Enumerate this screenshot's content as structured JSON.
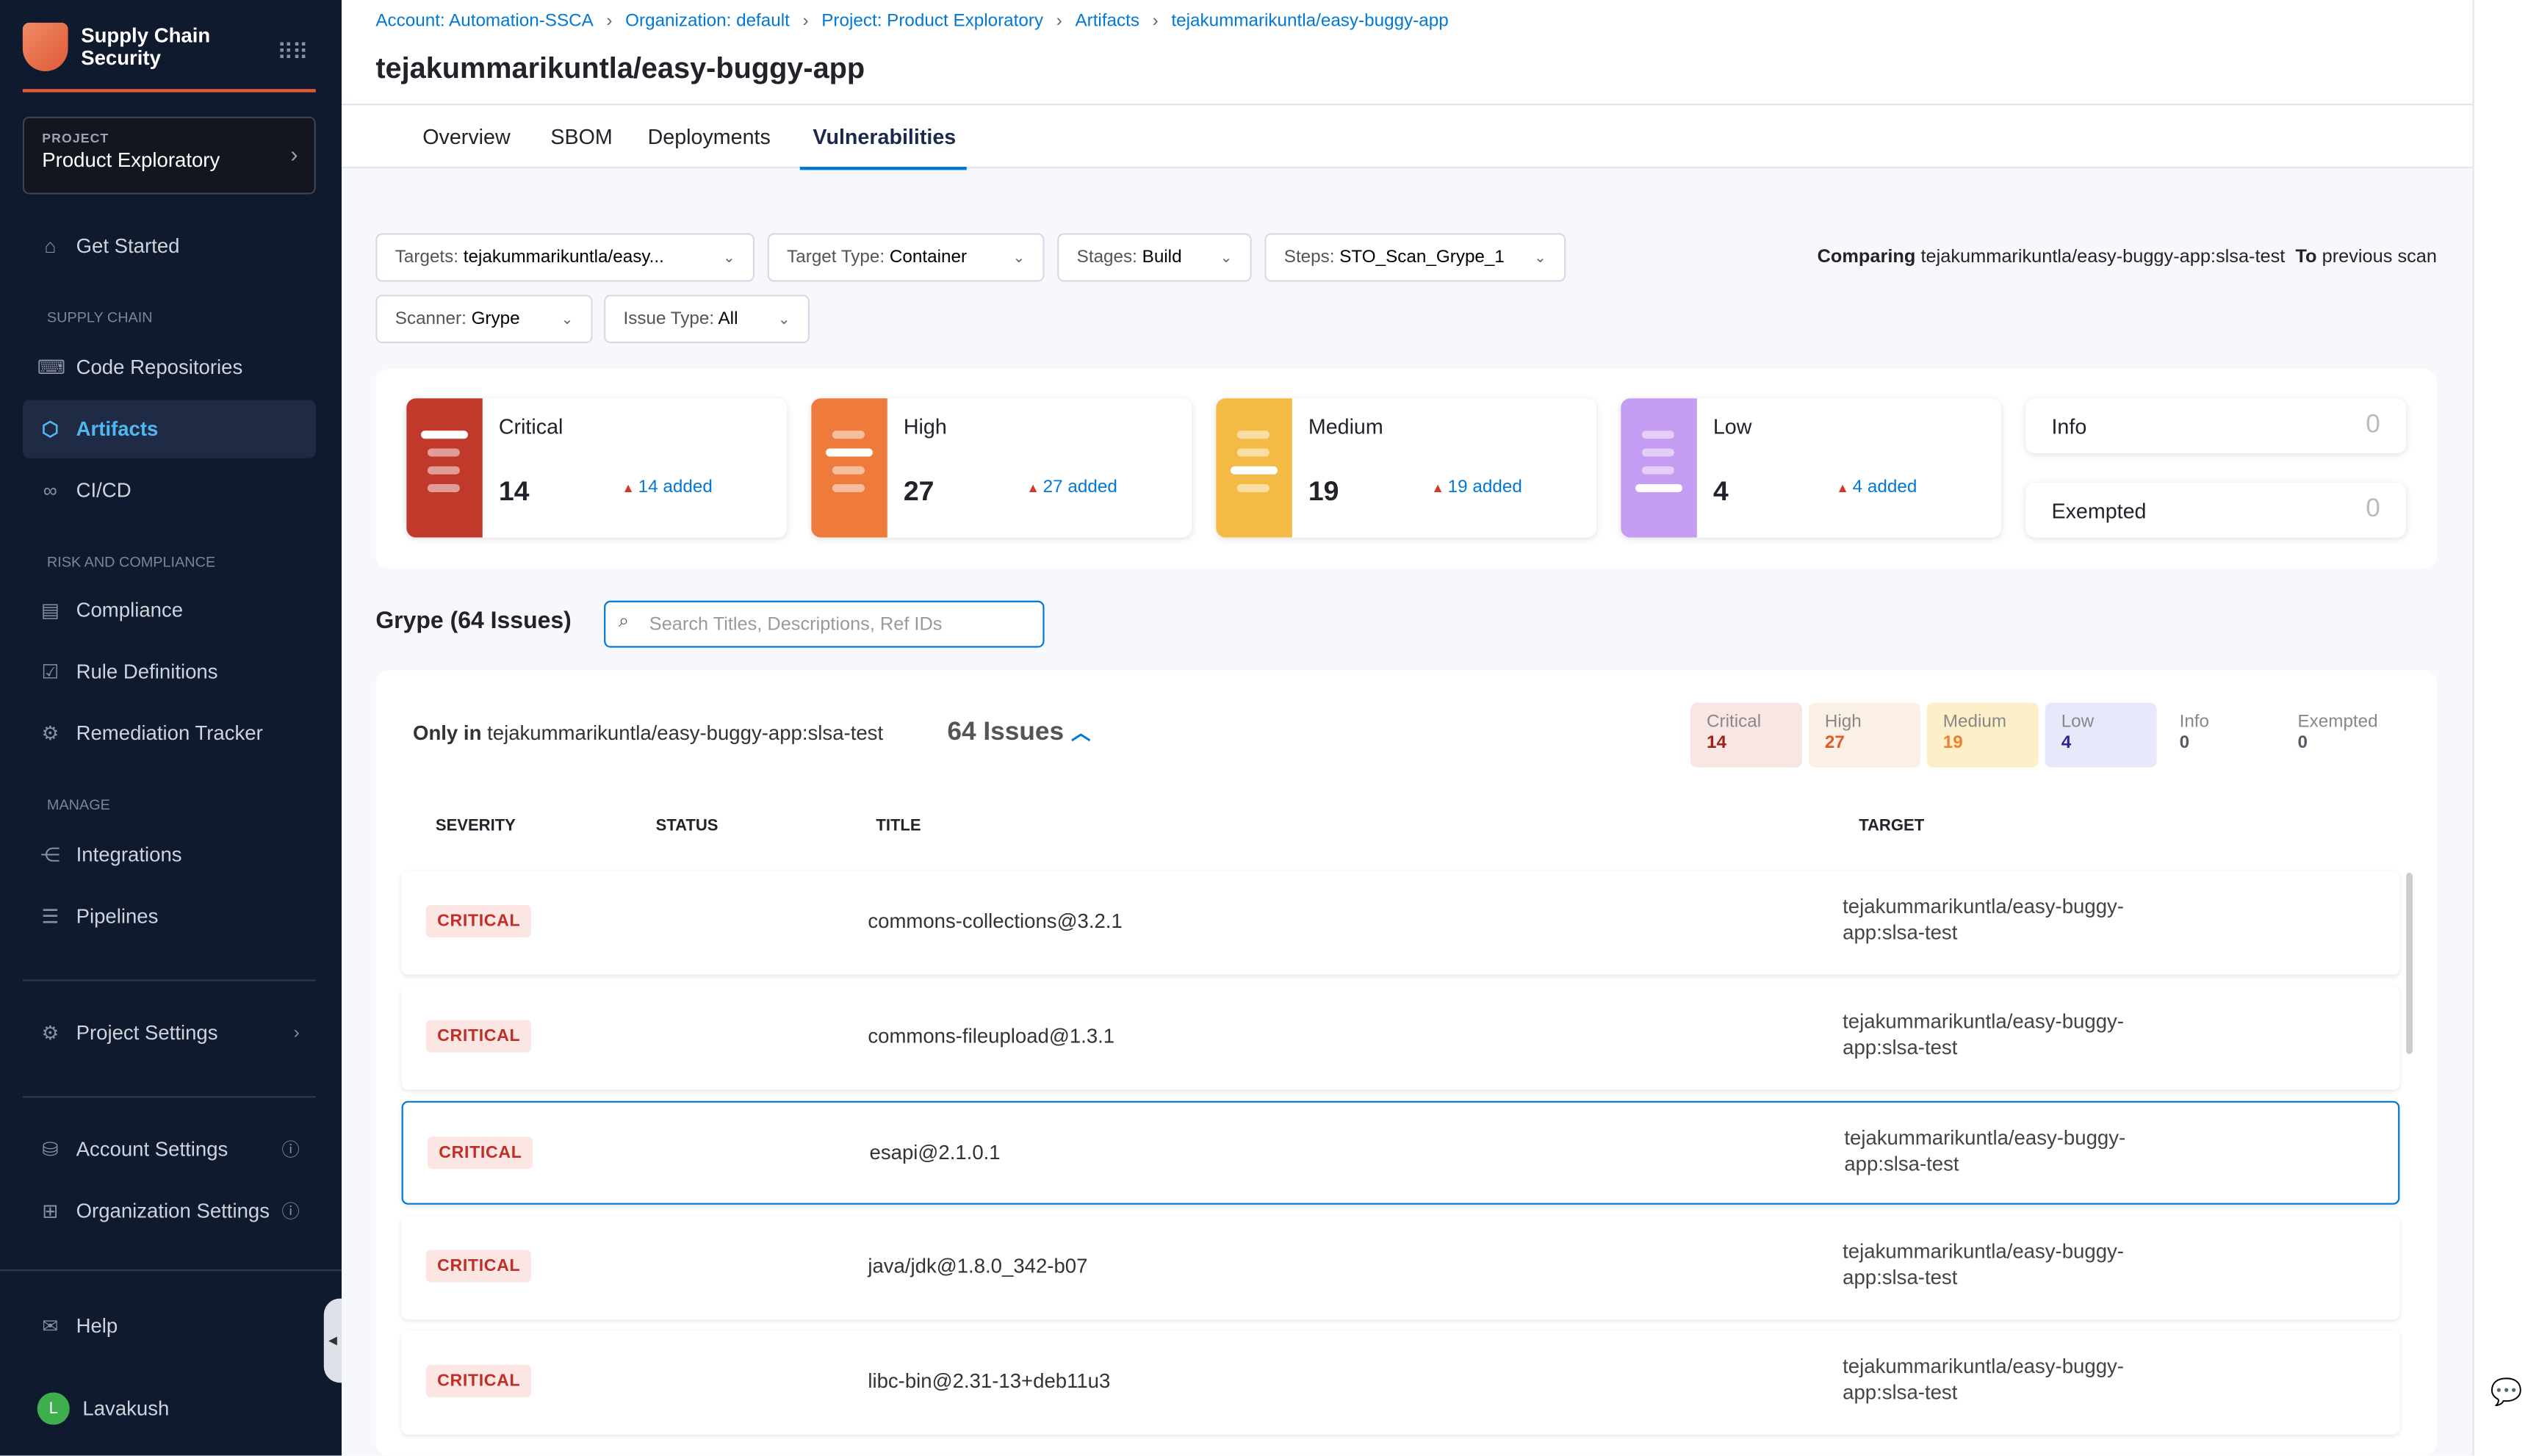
{
  "sidebar": {
    "app_title_1": "Supply Chain",
    "app_title_2": "Security",
    "project_label": "PROJECT",
    "project_name": "Product Exploratory",
    "get_started": "Get Started",
    "sec_supply": "SUPPLY CHAIN",
    "code_repos": "Code Repositories",
    "artifacts": "Artifacts",
    "cicd": "CI/CD",
    "sec_risk": "RISK AND COMPLIANCE",
    "compliance": "Compliance",
    "rule_defs": "Rule Definitions",
    "remediation": "Remediation Tracker",
    "sec_manage": "MANAGE",
    "integrations": "Integrations",
    "pipelines": "Pipelines",
    "project_settings": "Project Settings",
    "account_settings": "Account Settings",
    "org_settings": "Organization Settings",
    "help": "Help",
    "user": "Lavakush",
    "user_initial": "L"
  },
  "breadcrumb": [
    "Account: Automation-SSCA",
    "Organization: default",
    "Project: Product Exploratory",
    "Artifacts",
    "tejakummarikuntla/easy-buggy-app"
  ],
  "page_title": "tejakummarikuntla/easy-buggy-app",
  "tabs": [
    "Overview",
    "SBOM",
    "Deployments",
    "Vulnerabilities"
  ],
  "active_tab": "Vulnerabilities",
  "filters": {
    "targets": {
      "label": "Targets:",
      "value": "tejakummarikuntla/easy..."
    },
    "target_type": {
      "label": "Target Type:",
      "value": "Container"
    },
    "stages": {
      "label": "Stages:",
      "value": "Build"
    },
    "steps": {
      "label": "Steps:",
      "value": "STO_Scan_Grype_1"
    },
    "scanner": {
      "label": "Scanner:",
      "value": "Grype"
    },
    "issue_type": {
      "label": "Issue Type:",
      "value": "All"
    }
  },
  "comparing": {
    "label": "Comparing",
    "target": "tejakummarikuntla/easy-buggy-app:slsa-test",
    "to": "To",
    "rest": "previous scan"
  },
  "severity_cards": [
    {
      "name": "Critical",
      "count": "14",
      "added": "14 added",
      "color": "#c0392b"
    },
    {
      "name": "High",
      "count": "27",
      "added": "27 added",
      "color": "#ee7b3b"
    },
    {
      "name": "Medium",
      "count": "19",
      "added": "19 added",
      "color": "#f3bb45"
    },
    {
      "name": "Low",
      "count": "4",
      "added": "4 added",
      "color": "#c49cf2"
    }
  ],
  "info": {
    "label": "Info",
    "count": "0"
  },
  "exempted": {
    "label": "Exempted",
    "count": "0"
  },
  "issues_heading": "Grype (64 Issues)",
  "search_placeholder": "Search Titles, Descriptions, Ref IDs",
  "group": {
    "only_in": "Only in",
    "target": "tejakummarikuntla/easy-buggy-app:slsa-test",
    "count": "64 Issues"
  },
  "pills": [
    {
      "label": "Critical",
      "value": "14",
      "bg": "#f8e6e4",
      "fg": "#9c2219"
    },
    {
      "label": "High",
      "value": "27",
      "bg": "#fbf0e6",
      "fg": "#e05a2b"
    },
    {
      "label": "Medium",
      "value": "19",
      "bg": "#fdf0c8",
      "fg": "#ee8030"
    },
    {
      "label": "Low",
      "value": "4",
      "bg": "#e8e8fb",
      "fg": "#28288c"
    },
    {
      "label": "Info",
      "value": "0",
      "bg": "#fff",
      "fg": "#555a6a"
    },
    {
      "label": "Exempted",
      "value": "0",
      "bg": "#fff",
      "fg": "#555a6a"
    }
  ],
  "columns": [
    "SEVERITY",
    "STATUS",
    "TITLE",
    "TARGET"
  ],
  "rows": [
    {
      "severity": "CRITICAL",
      "title": "commons-collections@3.2.1",
      "target_1": "tejakummarikuntla/easy-buggy-",
      "target_2": "app:slsa-test"
    },
    {
      "severity": "CRITICAL",
      "title": "commons-fileupload@1.3.1",
      "target_1": "tejakummarikuntla/easy-buggy-",
      "target_2": "app:slsa-test"
    },
    {
      "severity": "CRITICAL",
      "title": "esapi@2.1.0.1",
      "target_1": "tejakummarikuntla/easy-buggy-",
      "target_2": "app:slsa-test"
    },
    {
      "severity": "CRITICAL",
      "title": "java/jdk@1.8.0_342-b07",
      "target_1": "tejakummarikuntla/easy-buggy-",
      "target_2": "app:slsa-test"
    },
    {
      "severity": "CRITICAL",
      "title": "libc-bin@2.31-13+deb11u3",
      "target_1": "tejakummarikuntla/easy-buggy-",
      "target_2": "app:slsa-test"
    }
  ]
}
